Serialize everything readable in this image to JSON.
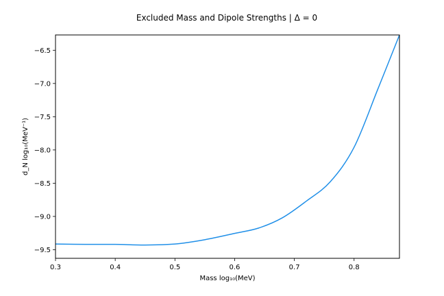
{
  "chart_data": {
    "type": "line",
    "title": "Excluded Mass and Dipole Strengths | Δ = 0",
    "xlabel": "Mass log₁₀(MeV)",
    "ylabel": "d_N log₁₀(MeV⁻¹)",
    "xlim": [
      0.3,
      0.876
    ],
    "ylim": [
      -9.63,
      -6.27
    ],
    "xticks": [
      0.3,
      0.4,
      0.5,
      0.6,
      0.7,
      0.8
    ],
    "xtick_labels": [
      "0.3",
      "0.4",
      "0.5",
      "0.6",
      "0.7",
      "0.8"
    ],
    "yticks": [
      -9.5,
      -9.0,
      -8.5,
      -8.0,
      -7.5,
      -7.0,
      -6.5
    ],
    "ytick_labels": [
      "−9.5",
      "−9.0",
      "−8.5",
      "−8.0",
      "−7.5",
      "−7.0",
      "−6.5"
    ],
    "grid": false,
    "line_color": "#1f8fe8",
    "series": [
      {
        "x": [
          0.3,
          0.35,
          0.4,
          0.45,
          0.5,
          0.55,
          0.6,
          0.64,
          0.68,
          0.72,
          0.76,
          0.8,
          0.84,
          0.876
        ],
        "y": [
          -9.415,
          -9.42,
          -9.42,
          -9.43,
          -9.415,
          -9.35,
          -9.255,
          -9.175,
          -9.02,
          -8.77,
          -8.48,
          -7.96,
          -7.08,
          -6.27
        ]
      }
    ]
  }
}
